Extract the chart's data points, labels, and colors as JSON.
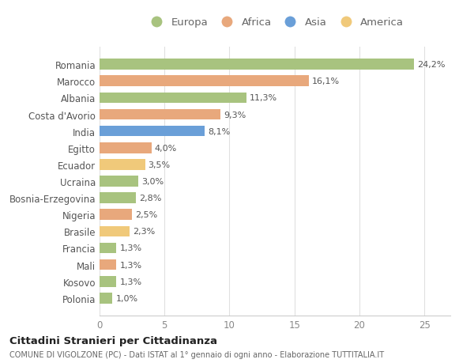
{
  "categories": [
    "Romania",
    "Marocco",
    "Albania",
    "Costa d'Avorio",
    "India",
    "Egitto",
    "Ecuador",
    "Ucraina",
    "Bosnia-Erzegovina",
    "Nigeria",
    "Brasile",
    "Francia",
    "Mali",
    "Kosovo",
    "Polonia"
  ],
  "values": [
    24.2,
    16.1,
    11.3,
    9.3,
    8.1,
    4.0,
    3.5,
    3.0,
    2.8,
    2.5,
    2.3,
    1.3,
    1.3,
    1.3,
    1.0
  ],
  "labels": [
    "24,2%",
    "16,1%",
    "11,3%",
    "9,3%",
    "8,1%",
    "4,0%",
    "3,5%",
    "3,0%",
    "2,8%",
    "2,5%",
    "2,3%",
    "1,3%",
    "1,3%",
    "1,3%",
    "1,0%"
  ],
  "colors": [
    "#a8c37f",
    "#e8a87c",
    "#a8c37f",
    "#e8a87c",
    "#6a9fd8",
    "#e8a87c",
    "#f0c97a",
    "#a8c37f",
    "#a8c37f",
    "#e8a87c",
    "#f0c97a",
    "#a8c37f",
    "#e8a87c",
    "#a8c37f",
    "#a8c37f"
  ],
  "legend_labels": [
    "Europa",
    "Africa",
    "Asia",
    "America"
  ],
  "legend_colors": [
    "#a8c37f",
    "#e8a87c",
    "#6a9fd8",
    "#f0c97a"
  ],
  "title": "Cittadini Stranieri per Cittadinanza",
  "subtitle": "COMUNE DI VIGOLZONE (PC) - Dati ISTAT al 1° gennaio di ogni anno - Elaborazione TUTTITALIA.IT",
  "xlim": [
    0,
    27
  ],
  "xticks": [
    0,
    5,
    10,
    15,
    20,
    25
  ],
  "bg_color": "#ffffff",
  "grid_color": "#e0e0e0"
}
